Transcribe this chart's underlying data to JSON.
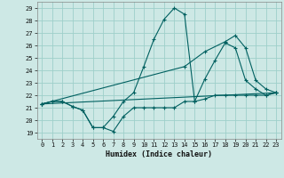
{
  "xlabel": "Humidex (Indice chaleur)",
  "bg_color": "#cde8e5",
  "grid_color": "#9ecfca",
  "line_color": "#006060",
  "xlim": [
    -0.5,
    23.5
  ],
  "ylim": [
    18.5,
    29.5
  ],
  "yticks": [
    19,
    20,
    21,
    22,
    23,
    24,
    25,
    26,
    27,
    28,
    29
  ],
  "xticks": [
    0,
    1,
    2,
    3,
    4,
    5,
    6,
    7,
    8,
    9,
    10,
    11,
    12,
    13,
    14,
    15,
    16,
    17,
    18,
    19,
    20,
    21,
    22,
    23
  ],
  "series": [
    {
      "x": [
        0,
        1,
        2,
        3,
        4,
        5,
        6,
        7,
        8,
        9,
        10,
        11,
        12,
        13,
        14,
        15,
        16,
        17,
        18,
        19,
        20,
        21,
        22,
        23
      ],
      "y": [
        21.3,
        21.5,
        21.5,
        21.1,
        20.8,
        19.4,
        19.4,
        19.1,
        20.3,
        21.0,
        21.0,
        21.0,
        21.0,
        21.0,
        21.5,
        21.5,
        21.7,
        22.0,
        22.0,
        22.0,
        22.0,
        22.0,
        22.0,
        22.2
      ]
    },
    {
      "x": [
        0,
        1,
        2,
        3,
        4,
        5,
        6,
        7,
        8,
        9,
        10,
        11,
        12,
        13,
        14,
        15,
        16,
        17,
        18,
        19,
        20,
        21,
        22,
        23
      ],
      "y": [
        21.3,
        21.5,
        21.5,
        21.1,
        20.8,
        19.4,
        19.4,
        20.3,
        21.5,
        22.2,
        24.3,
        26.5,
        28.1,
        29.0,
        28.5,
        21.5,
        23.3,
        24.8,
        26.2,
        25.8,
        23.2,
        22.5,
        22.0,
        22.2
      ]
    },
    {
      "x": [
        0,
        14,
        16,
        18,
        19,
        20,
        21,
        22,
        23
      ],
      "y": [
        21.3,
        24.3,
        25.5,
        26.3,
        26.8,
        25.8,
        23.2,
        22.5,
        22.2
      ]
    },
    {
      "x": [
        0,
        23
      ],
      "y": [
        21.3,
        22.2
      ]
    }
  ]
}
